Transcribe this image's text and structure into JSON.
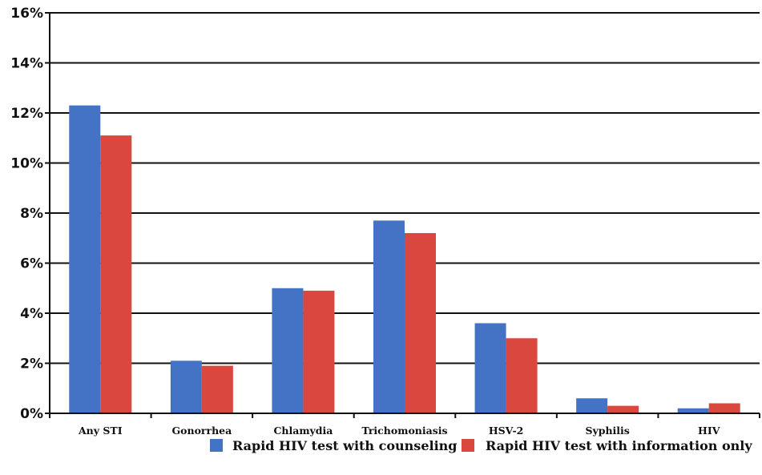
{
  "chart_data": {
    "type": "bar",
    "title": "",
    "xlabel": "",
    "ylabel": "",
    "ylim": [
      0,
      16
    ],
    "y_tick_values": [
      0,
      2,
      4,
      6,
      8,
      10,
      12,
      14,
      16
    ],
    "y_tick_labels": [
      "0%",
      "2%",
      "4%",
      "6%",
      "8%",
      "10%",
      "12%",
      "14%",
      "16%"
    ],
    "grid": true,
    "legend_position": "bottom-right",
    "categories": [
      "Any STI",
      "Gonorrhea",
      "Chlamydia",
      "Trichomoniasis",
      "HSV-2",
      "Syphilis",
      "HIV"
    ],
    "series": [
      {
        "name": "Rapid HIV test with counseling",
        "color": "#4472c4",
        "values": [
          12.3,
          2.1,
          5.0,
          7.7,
          3.6,
          0.6,
          0.2
        ]
      },
      {
        "name": "Rapid HIV test with information only",
        "color": "#d9473f",
        "values": [
          11.1,
          1.9,
          4.9,
          7.2,
          3.0,
          0.3,
          0.4
        ]
      }
    ]
  }
}
